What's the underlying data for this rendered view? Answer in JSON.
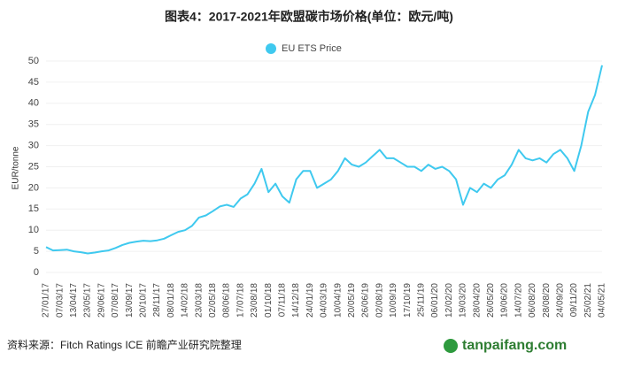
{
  "chart_data": {
    "type": "line",
    "title": "图表4：2017-2021年欧盟碳市场价格(单位：欧元/吨)",
    "y_label": "EUR/tonne",
    "source": "资料来源：Fitch Ratings ICE 前瞻产业研究院整理",
    "watermark": "tanpaifang.com",
    "legend": "top",
    "grid": true,
    "ylim": [
      0,
      50
    ],
    "yticks": [
      0,
      5,
      10,
      15,
      20,
      25,
      30,
      35,
      40,
      45,
      50
    ],
    "categories": [
      "27/01/17",
      null,
      "07/03/17",
      null,
      "13/04/17",
      null,
      "23/05/17",
      null,
      "29/06/17",
      null,
      "07/08/17",
      null,
      "13/09/17",
      null,
      "20/10/17",
      null,
      "28/11/17",
      null,
      "08/01/18",
      null,
      "14/02/18",
      null,
      "23/03/18",
      null,
      "02/05/18",
      null,
      "08/06/18",
      null,
      "17/07/18",
      null,
      "23/08/18",
      null,
      "01/10/18",
      null,
      "07/11/18",
      null,
      "14/12/18",
      null,
      "24/01/19",
      null,
      "04/03/19",
      null,
      "10/04/19",
      null,
      "20/05/19",
      null,
      "26/06/19",
      null,
      "02/08/19",
      null,
      "10/09/19",
      null,
      "17/10/19",
      null,
      "25/11/19",
      null,
      "06/01/20",
      null,
      "12/02/20",
      null,
      "19/03/20",
      null,
      "28/04/20",
      null,
      "26/05/20",
      null,
      "19/06/20",
      null,
      "14/07/20",
      null,
      "06/08/20",
      null,
      "28/08/20",
      null,
      "24/09/20",
      null,
      "09/11/20",
      null,
      "25/02/21",
      null,
      "04/05/21"
    ],
    "series": [
      {
        "name": "EU ETS Price",
        "color": "#3fc9ef",
        "values": [
          6,
          5.2,
          5.3,
          5.4,
          5,
          4.8,
          4.5,
          4.7,
          5,
          5.2,
          5.8,
          6.5,
          7,
          7.3,
          7.5,
          7.4,
          7.6,
          8,
          8.8,
          9.6,
          10,
          11,
          13,
          13.5,
          14.5,
          15.6,
          16,
          15.5,
          17.5,
          18.5,
          21,
          24.5,
          19,
          21,
          18,
          16.5,
          22,
          24,
          24,
          20,
          21,
          22,
          24,
          27,
          25.5,
          25,
          26,
          27.5,
          29,
          27,
          27,
          26,
          25,
          25,
          24,
          25.5,
          24.5,
          25,
          24,
          22,
          16,
          20,
          19,
          21,
          20,
          22,
          23,
          25.5,
          29,
          27,
          26.5,
          27,
          26,
          28,
          29,
          27,
          24,
          30,
          38,
          42,
          49
        ]
      }
    ]
  }
}
